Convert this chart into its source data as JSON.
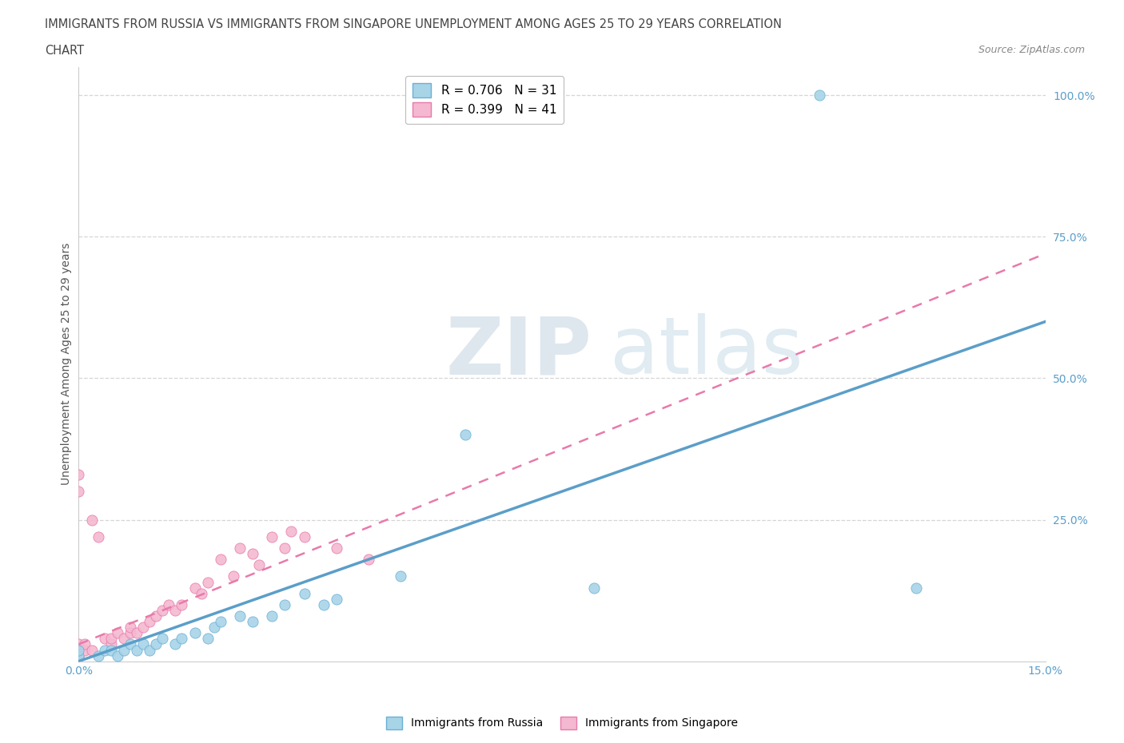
{
  "title_line1": "IMMIGRANTS FROM RUSSIA VS IMMIGRANTS FROM SINGAPORE UNEMPLOYMENT AMONG AGES 25 TO 29 YEARS CORRELATION",
  "title_line2": "CHART",
  "source_text": "Source: ZipAtlas.com",
  "ylabel": "Unemployment Among Ages 25 to 29 years",
  "xlim": [
    0.0,
    0.15
  ],
  "ylim": [
    0.0,
    1.05
  ],
  "xticks": [
    0.0,
    0.05,
    0.1,
    0.15
  ],
  "xticklabels": [
    "0.0%",
    "",
    "",
    "15.0%"
  ],
  "right_yticks": [
    0.0,
    0.25,
    0.5,
    0.75,
    1.0
  ],
  "right_yticklabels": [
    "",
    "25.0%",
    "50.0%",
    "75.0%",
    "100.0%"
  ],
  "russia_color": "#a8d4e8",
  "singapore_color": "#f4b8d0",
  "russia_edge_color": "#6ab0d4",
  "singapore_edge_color": "#e87aab",
  "russia_line_color": "#5b9ec9",
  "singapore_line_color": "#e87aab",
  "russia_R": 0.706,
  "russia_N": 31,
  "singapore_R": 0.399,
  "singapore_N": 41,
  "watermark_zip": "ZIP",
  "watermark_atlas": "atlas",
  "background_color": "#ffffff",
  "grid_color": "#cccccc",
  "russia_line_x0": 0.0,
  "russia_line_y0": 0.0,
  "russia_line_x1": 0.15,
  "russia_line_y1": 0.6,
  "singapore_line_x0": 0.0,
  "singapore_line_y0": 0.03,
  "singapore_line_x1": 0.15,
  "singapore_line_y1": 0.72,
  "russia_scatter_x": [
    0.0,
    0.0,
    0.003,
    0.004,
    0.005,
    0.006,
    0.007,
    0.008,
    0.009,
    0.01,
    0.011,
    0.012,
    0.013,
    0.015,
    0.016,
    0.018,
    0.02,
    0.021,
    0.022,
    0.025,
    0.027,
    0.03,
    0.032,
    0.035,
    0.038,
    0.04,
    0.05,
    0.06,
    0.08,
    0.115,
    0.13
  ],
  "russia_scatter_y": [
    0.01,
    0.02,
    0.01,
    0.02,
    0.02,
    0.01,
    0.02,
    0.03,
    0.02,
    0.03,
    0.02,
    0.03,
    0.04,
    0.03,
    0.04,
    0.05,
    0.04,
    0.06,
    0.07,
    0.08,
    0.07,
    0.08,
    0.1,
    0.12,
    0.1,
    0.11,
    0.15,
    0.4,
    0.13,
    1.0,
    0.13
  ],
  "singapore_scatter_x": [
    0.0,
    0.0,
    0.0,
    0.0,
    0.0,
    0.0,
    0.0,
    0.001,
    0.001,
    0.002,
    0.002,
    0.003,
    0.004,
    0.005,
    0.005,
    0.006,
    0.007,
    0.008,
    0.008,
    0.009,
    0.01,
    0.011,
    0.012,
    0.013,
    0.014,
    0.015,
    0.016,
    0.018,
    0.019,
    0.02,
    0.022,
    0.024,
    0.025,
    0.027,
    0.028,
    0.03,
    0.032,
    0.033,
    0.035,
    0.04,
    0.045
  ],
  "singapore_scatter_y": [
    0.01,
    0.01,
    0.02,
    0.02,
    0.03,
    0.3,
    0.33,
    0.02,
    0.03,
    0.02,
    0.25,
    0.22,
    0.04,
    0.03,
    0.04,
    0.05,
    0.04,
    0.05,
    0.06,
    0.05,
    0.06,
    0.07,
    0.08,
    0.09,
    0.1,
    0.09,
    0.1,
    0.13,
    0.12,
    0.14,
    0.18,
    0.15,
    0.2,
    0.19,
    0.17,
    0.22,
    0.2,
    0.23,
    0.22,
    0.2,
    0.18
  ]
}
